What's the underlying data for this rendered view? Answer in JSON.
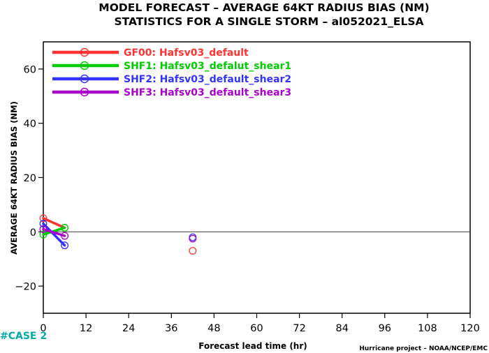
{
  "chart_data": {
    "type": "line",
    "title": "MODEL FORECAST – AVERAGE 64KT RADIUS BIAS (NM)",
    "subtitle": "STATISTICS FOR A SINGLE STORM – al052021_ELSA",
    "xlabel": "Forecast lead time (hr)",
    "ylabel": "AVERAGE 64KT RADIUS BIAS (NM)",
    "xlim": [
      0,
      120
    ],
    "ylim": [
      -30,
      70
    ],
    "xticks": [
      0,
      12,
      24,
      36,
      48,
      60,
      72,
      84,
      96,
      108,
      120
    ],
    "yticks": [
      -20,
      0,
      20,
      40,
      60
    ],
    "zero_line": true,
    "grid": false,
    "legend_position": "top-left",
    "series": [
      {
        "name": "GF00: Hafsv03_default",
        "color": "#ff3333",
        "points": [
          [
            0,
            5
          ],
          [
            6,
            1.5
          ],
          [
            42,
            -7
          ]
        ]
      },
      {
        "name": "SHF1: Hafsv03_defalut_shear1",
        "color": "#00cc00",
        "points": [
          [
            0,
            -1
          ],
          [
            6,
            1.5
          ]
        ]
      },
      {
        "name": "SHF2: Hafsv03_default_shear2",
        "color": "#3333ff",
        "points": [
          [
            0,
            3
          ],
          [
            6,
            -5
          ],
          [
            42,
            -2
          ]
        ]
      },
      {
        "name": "SHF3: Hafsv03_default_shear3",
        "color": "#aa00cc",
        "points": [
          [
            0,
            1
          ],
          [
            6,
            -1.5
          ],
          [
            42,
            -2.5
          ]
        ]
      }
    ]
  },
  "annotations": {
    "case_label": "#CASE 2",
    "case_color": "#00aaaa",
    "credit": "Hurricane project – NOAA/NCEP/EMC"
  }
}
